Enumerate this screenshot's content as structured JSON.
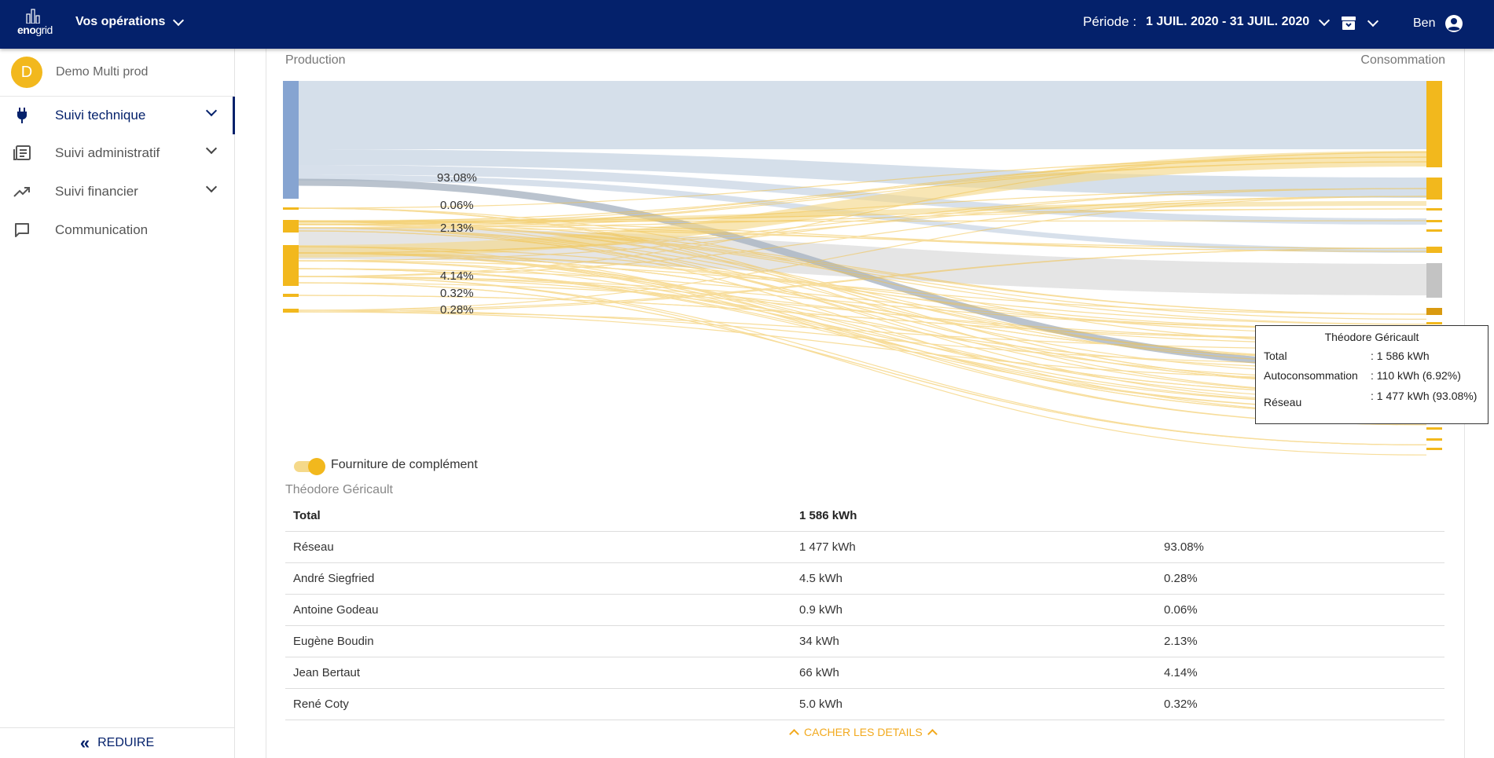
{
  "header": {
    "logo_text": "enogrid",
    "logo_bold": "eno",
    "logo_light": "grid",
    "operations_label": "Vos opérations",
    "period_label": "Période :",
    "period_range": "1 JUIL. 2020 - 31 JUIL. 2020",
    "user_name": "Ben"
  },
  "sidebar": {
    "org_initial": "D",
    "org_name": "Demo Multi prod",
    "items": [
      {
        "label": "Suivi technique",
        "icon": "plug-icon"
      },
      {
        "label": "Suivi administratif",
        "icon": "newspaper-icon"
      },
      {
        "label": "Suivi financier",
        "icon": "trending-up-icon"
      },
      {
        "label": "Communication",
        "icon": "chat-icon"
      }
    ],
    "reduce_label": "REDUIRE"
  },
  "chart_data": {
    "type": "sankey",
    "source_label": "Production",
    "target_label": "Consommation",
    "highlighted_percentages": [
      "93.08%",
      "0.06%",
      "2.13%",
      "4.14%",
      "0.32%",
      "0.28%"
    ],
    "colors": {
      "grid": "#86a4d1",
      "production": "#f2b81d",
      "other": "#c8c8c8"
    }
  },
  "tooltip": {
    "title": "Théodore Géricault",
    "rows": [
      {
        "label": "Total",
        "value": ": 1 586 kWh"
      },
      {
        "label": "Autoconsommation",
        "value": ": 110 kWh (6.92%)"
      },
      {
        "label": "Réseau",
        "value": ": 1 477 kWh (93.08%)"
      }
    ]
  },
  "toggle_label": "Fourniture de complément",
  "details": {
    "title": "Théodore Géricault",
    "header": {
      "name": "Total",
      "energy": "1 586 kWh",
      "share": ""
    },
    "rows": [
      {
        "name": "Réseau",
        "energy": "1 477 kWh",
        "share": "93.08%"
      },
      {
        "name": "André Siegfried",
        "energy": "4.5 kWh",
        "share": "0.28%"
      },
      {
        "name": "Antoine Godeau",
        "energy": "0.9 kWh",
        "share": "0.06%"
      },
      {
        "name": "Eugène Boudin",
        "energy": "34 kWh",
        "share": "2.13%"
      },
      {
        "name": "Jean Bertaut",
        "energy": "66 kWh",
        "share": "4.14%"
      },
      {
        "name": "René Coty",
        "energy": "5.0 kWh",
        "share": "0.32%"
      }
    ],
    "hide_label": "CACHER LES DETAILS"
  }
}
